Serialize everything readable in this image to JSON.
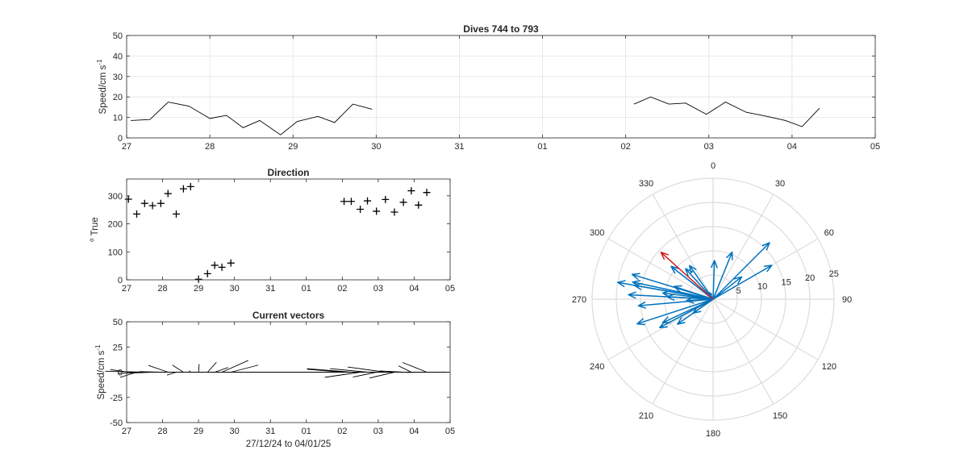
{
  "chart_data": [
    {
      "type": "line",
      "title": "Dives 744 to 793",
      "xlabel": "",
      "ylabel": "Speed/cm s",
      "ylabel_exponent": "-1",
      "xlim": [
        0,
        9
      ],
      "ylim": [
        0,
        50
      ],
      "yticks": [
        0,
        10,
        20,
        30,
        40,
        50
      ],
      "xtick_labels": [
        "27",
        "28",
        "29",
        "30",
        "31",
        "01",
        "02",
        "03",
        "04",
        "05"
      ],
      "grid": true,
      "series": [
        {
          "segments": [
            [
              [
                0.05,
                8.5
              ],
              [
                0.28,
                9
              ],
              [
                0.5,
                17.5
              ],
              [
                0.75,
                15.5
              ],
              [
                1.0,
                9.5
              ],
              [
                1.2,
                11
              ],
              [
                1.4,
                5
              ],
              [
                1.6,
                8.5
              ],
              [
                1.85,
                1.5
              ],
              [
                2.05,
                8
              ],
              [
                2.3,
                10.5
              ],
              [
                2.5,
                7.5
              ],
              [
                2.72,
                16.5
              ],
              [
                2.95,
                14
              ]
            ],
            [
              [
                6.1,
                16.5
              ],
              [
                6.3,
                20
              ],
              [
                6.52,
                16.5
              ],
              [
                6.72,
                17
              ],
              [
                6.97,
                11.5
              ],
              [
                7.2,
                17.5
              ],
              [
                7.45,
                12.5
              ],
              [
                7.7,
                10.5
              ],
              [
                7.92,
                8.5
              ],
              [
                8.12,
                5.5
              ],
              [
                8.33,
                14.5
              ]
            ]
          ]
        }
      ]
    },
    {
      "type": "scatter",
      "title": "Direction",
      "xlabel": "",
      "ylabel": "True",
      "ylabel_prefix": "o",
      "xlim": [
        0,
        9
      ],
      "ylim": [
        0,
        360
      ],
      "yticks": [
        0,
        100,
        200,
        300
      ],
      "xtick_labels": [
        "27",
        "28",
        "29",
        "30",
        "31",
        "01",
        "02",
        "03",
        "04",
        "05"
      ],
      "grid": false,
      "marker": "+",
      "points": [
        [
          0.05,
          288
        ],
        [
          0.28,
          235
        ],
        [
          0.5,
          273
        ],
        [
          0.72,
          265
        ],
        [
          0.95,
          273
        ],
        [
          1.15,
          308
        ],
        [
          1.38,
          235
        ],
        [
          1.58,
          325
        ],
        [
          1.78,
          333
        ],
        [
          2.0,
          2
        ],
        [
          2.25,
          22
        ],
        [
          2.45,
          52
        ],
        [
          2.65,
          45
        ],
        [
          2.9,
          60
        ],
        [
          6.05,
          280
        ],
        [
          6.25,
          280
        ],
        [
          6.5,
          252
        ],
        [
          6.7,
          282
        ],
        [
          6.95,
          245
        ],
        [
          7.2,
          287
        ],
        [
          7.45,
          242
        ],
        [
          7.7,
          277
        ],
        [
          7.92,
          318
        ],
        [
          8.12,
          267
        ],
        [
          8.35,
          312
        ]
      ]
    },
    {
      "type": "line",
      "title": "Current vectors",
      "xlabel": "27/12/24 to 04/01/25",
      "ylabel": "Speed/cm s",
      "ylabel_exponent": "-1",
      "xlim": [
        0,
        9
      ],
      "ylim": [
        -50,
        50
      ],
      "yticks": [
        -50,
        -25,
        0,
        25,
        50
      ],
      "xtick_labels": [
        "27",
        "28",
        "29",
        "30",
        "31",
        "01",
        "02",
        "03",
        "04",
        "05"
      ],
      "grid": false,
      "vectors": [
        {
          "t": 0.05,
          "speed": 8.5,
          "dir": 288
        },
        {
          "t": 0.28,
          "speed": 9,
          "dir": 235
        },
        {
          "t": 0.5,
          "speed": 17.5,
          "dir": 273
        },
        {
          "t": 0.72,
          "speed": 15.5,
          "dir": 265
        },
        {
          "t": 0.95,
          "speed": 9.5,
          "dir": 273
        },
        {
          "t": 1.15,
          "speed": 11,
          "dir": 308
        },
        {
          "t": 1.38,
          "speed": 5,
          "dir": 235
        },
        {
          "t": 1.58,
          "speed": 8.5,
          "dir": 325
        },
        {
          "t": 1.78,
          "speed": 1.5,
          "dir": 333
        },
        {
          "t": 2.0,
          "speed": 8,
          "dir": 2
        },
        {
          "t": 2.25,
          "speed": 10.5,
          "dir": 22
        },
        {
          "t": 2.45,
          "speed": 7.5,
          "dir": 52
        },
        {
          "t": 2.65,
          "speed": 16.5,
          "dir": 45
        },
        {
          "t": 2.9,
          "speed": 14,
          "dir": 60
        },
        {
          "t": 6.05,
          "speed": 16.5,
          "dir": 280
        },
        {
          "t": 6.25,
          "speed": 20,
          "dir": 280
        },
        {
          "t": 6.5,
          "speed": 16.5,
          "dir": 252
        },
        {
          "t": 6.7,
          "speed": 17,
          "dir": 282
        },
        {
          "t": 6.95,
          "speed": 11.5,
          "dir": 245
        },
        {
          "t": 7.2,
          "speed": 17.5,
          "dir": 287
        },
        {
          "t": 7.45,
          "speed": 12.5,
          "dir": 242
        },
        {
          "t": 7.7,
          "speed": 10.5,
          "dir": 277
        },
        {
          "t": 7.92,
          "speed": 8.5,
          "dir": 318
        },
        {
          "t": 8.12,
          "speed": 5.5,
          "dir": 267
        },
        {
          "t": 8.35,
          "speed": 14.5,
          "dir": 312
        }
      ]
    },
    {
      "type": "polar",
      "title": "",
      "rlim": [
        0,
        25
      ],
      "r_ticks": [
        5,
        10,
        15,
        20,
        25
      ],
      "angle_ticks": [
        "0",
        "30",
        "60",
        "90",
        "120",
        "150",
        "180",
        "210",
        "240",
        "270",
        "300",
        "330"
      ],
      "series_color": "#0072bd",
      "latest_color": "#d7191c",
      "arrows": [
        {
          "dir": 288,
          "speed": 8.5
        },
        {
          "dir": 235,
          "speed": 9
        },
        {
          "dir": 273,
          "speed": 17.5
        },
        {
          "dir": 265,
          "speed": 15.5
        },
        {
          "dir": 273,
          "speed": 9.5
        },
        {
          "dir": 308,
          "speed": 11
        },
        {
          "dir": 235,
          "speed": 5
        },
        {
          "dir": 325,
          "speed": 8.5
        },
        {
          "dir": 333,
          "speed": 1.5
        },
        {
          "dir": 2,
          "speed": 8
        },
        {
          "dir": 22,
          "speed": 10.5
        },
        {
          "dir": 52,
          "speed": 7.5
        },
        {
          "dir": 45,
          "speed": 16.5
        },
        {
          "dir": 60,
          "speed": 14
        },
        {
          "dir": 280,
          "speed": 16.5
        },
        {
          "dir": 280,
          "speed": 20
        },
        {
          "dir": 252,
          "speed": 16.5
        },
        {
          "dir": 282,
          "speed": 17
        },
        {
          "dir": 245,
          "speed": 11.5
        },
        {
          "dir": 287,
          "speed": 17.5
        },
        {
          "dir": 242,
          "speed": 12.5
        },
        {
          "dir": 277,
          "speed": 10.5
        },
        {
          "dir": 318,
          "speed": 8.5
        },
        {
          "dir": 267,
          "speed": 5.5
        },
        {
          "dir": 312,
          "speed": 14.5
        }
      ]
    }
  ]
}
